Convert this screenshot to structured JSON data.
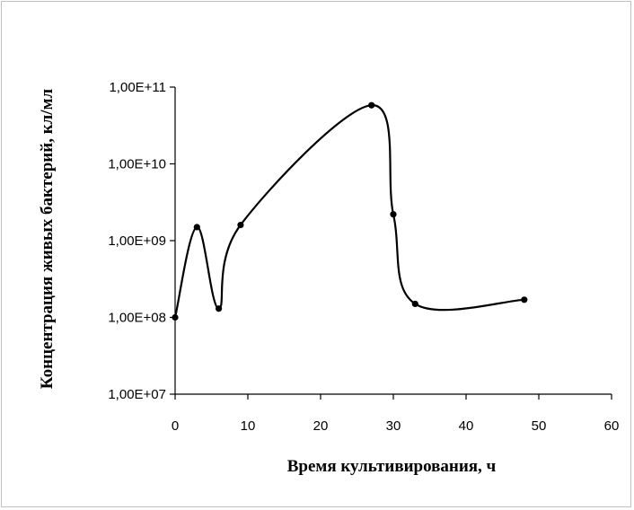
{
  "chart_data": {
    "type": "line",
    "title": "",
    "xlabel": "Время культивирования, ч",
    "ylabel": "Концентрация живых бактерий, кл/мл",
    "xlim": [
      0,
      60
    ],
    "ylim": [
      10000000,
      100000000000
    ],
    "y_scale": "log",
    "grid": false,
    "legend": "none",
    "x_ticks": [
      0,
      10,
      20,
      30,
      40,
      50,
      60
    ],
    "x_tick_labels": [
      "0",
      "10",
      "20",
      "30",
      "40",
      "50",
      "60"
    ],
    "y_ticks": [
      10000000,
      100000000,
      1000000000,
      10000000000,
      100000000000
    ],
    "y_tick_labels": [
      "1,00E+07",
      "1,00E+08",
      "1,00E+09",
      "1,00E+10",
      "1,00E+11"
    ],
    "series": [
      {
        "color": "#000000",
        "smooth": true,
        "x": [
          0,
          3,
          6,
          9,
          27,
          30,
          33,
          48
        ],
        "y": [
          100000000,
          1500000000,
          130000000,
          1600000000,
          58000000000,
          2200000000,
          150000000,
          170000000
        ]
      }
    ]
  }
}
